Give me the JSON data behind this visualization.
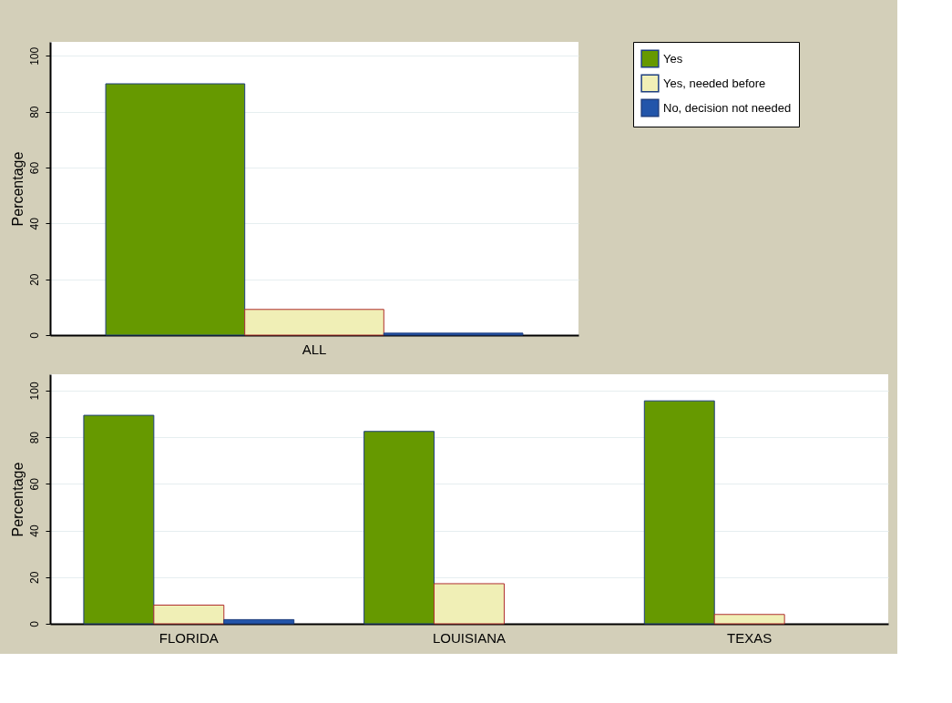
{
  "chart_data": [
    {
      "type": "bar",
      "ylabel": "Percentage",
      "categories": [
        "ALL"
      ],
      "ylim": [
        0,
        105
      ],
      "yticks": [
        0,
        20,
        40,
        60,
        80,
        100
      ],
      "grid": "y",
      "legend": "right",
      "series": [
        {
          "name": "Yes",
          "color": "#669900",
          "values": [
            90
          ]
        },
        {
          "name": "Yes, needed before",
          "color": "#f0efb6",
          "values": [
            9.2
          ]
        },
        {
          "name": "No, decision not needed",
          "color": "#2255aa",
          "values": [
            0.7
          ]
        }
      ]
    },
    {
      "type": "bar",
      "ylabel": "Percentage",
      "categories": [
        "FLORIDA",
        "LOUISIANA",
        "TEXAS"
      ],
      "ylim": [
        0,
        107
      ],
      "yticks": [
        0,
        20,
        40,
        60,
        80,
        100
      ],
      "grid": "y",
      "series": [
        {
          "color": "#669900",
          "values": [
            89.4,
            82.5,
            95.6
          ]
        },
        {
          "color": "#f0efb6",
          "values": [
            8.0,
            17.2,
            4.0
          ]
        },
        {
          "color": "#2255aa",
          "values": [
            1.8,
            null,
            null
          ]
        }
      ]
    }
  ]
}
